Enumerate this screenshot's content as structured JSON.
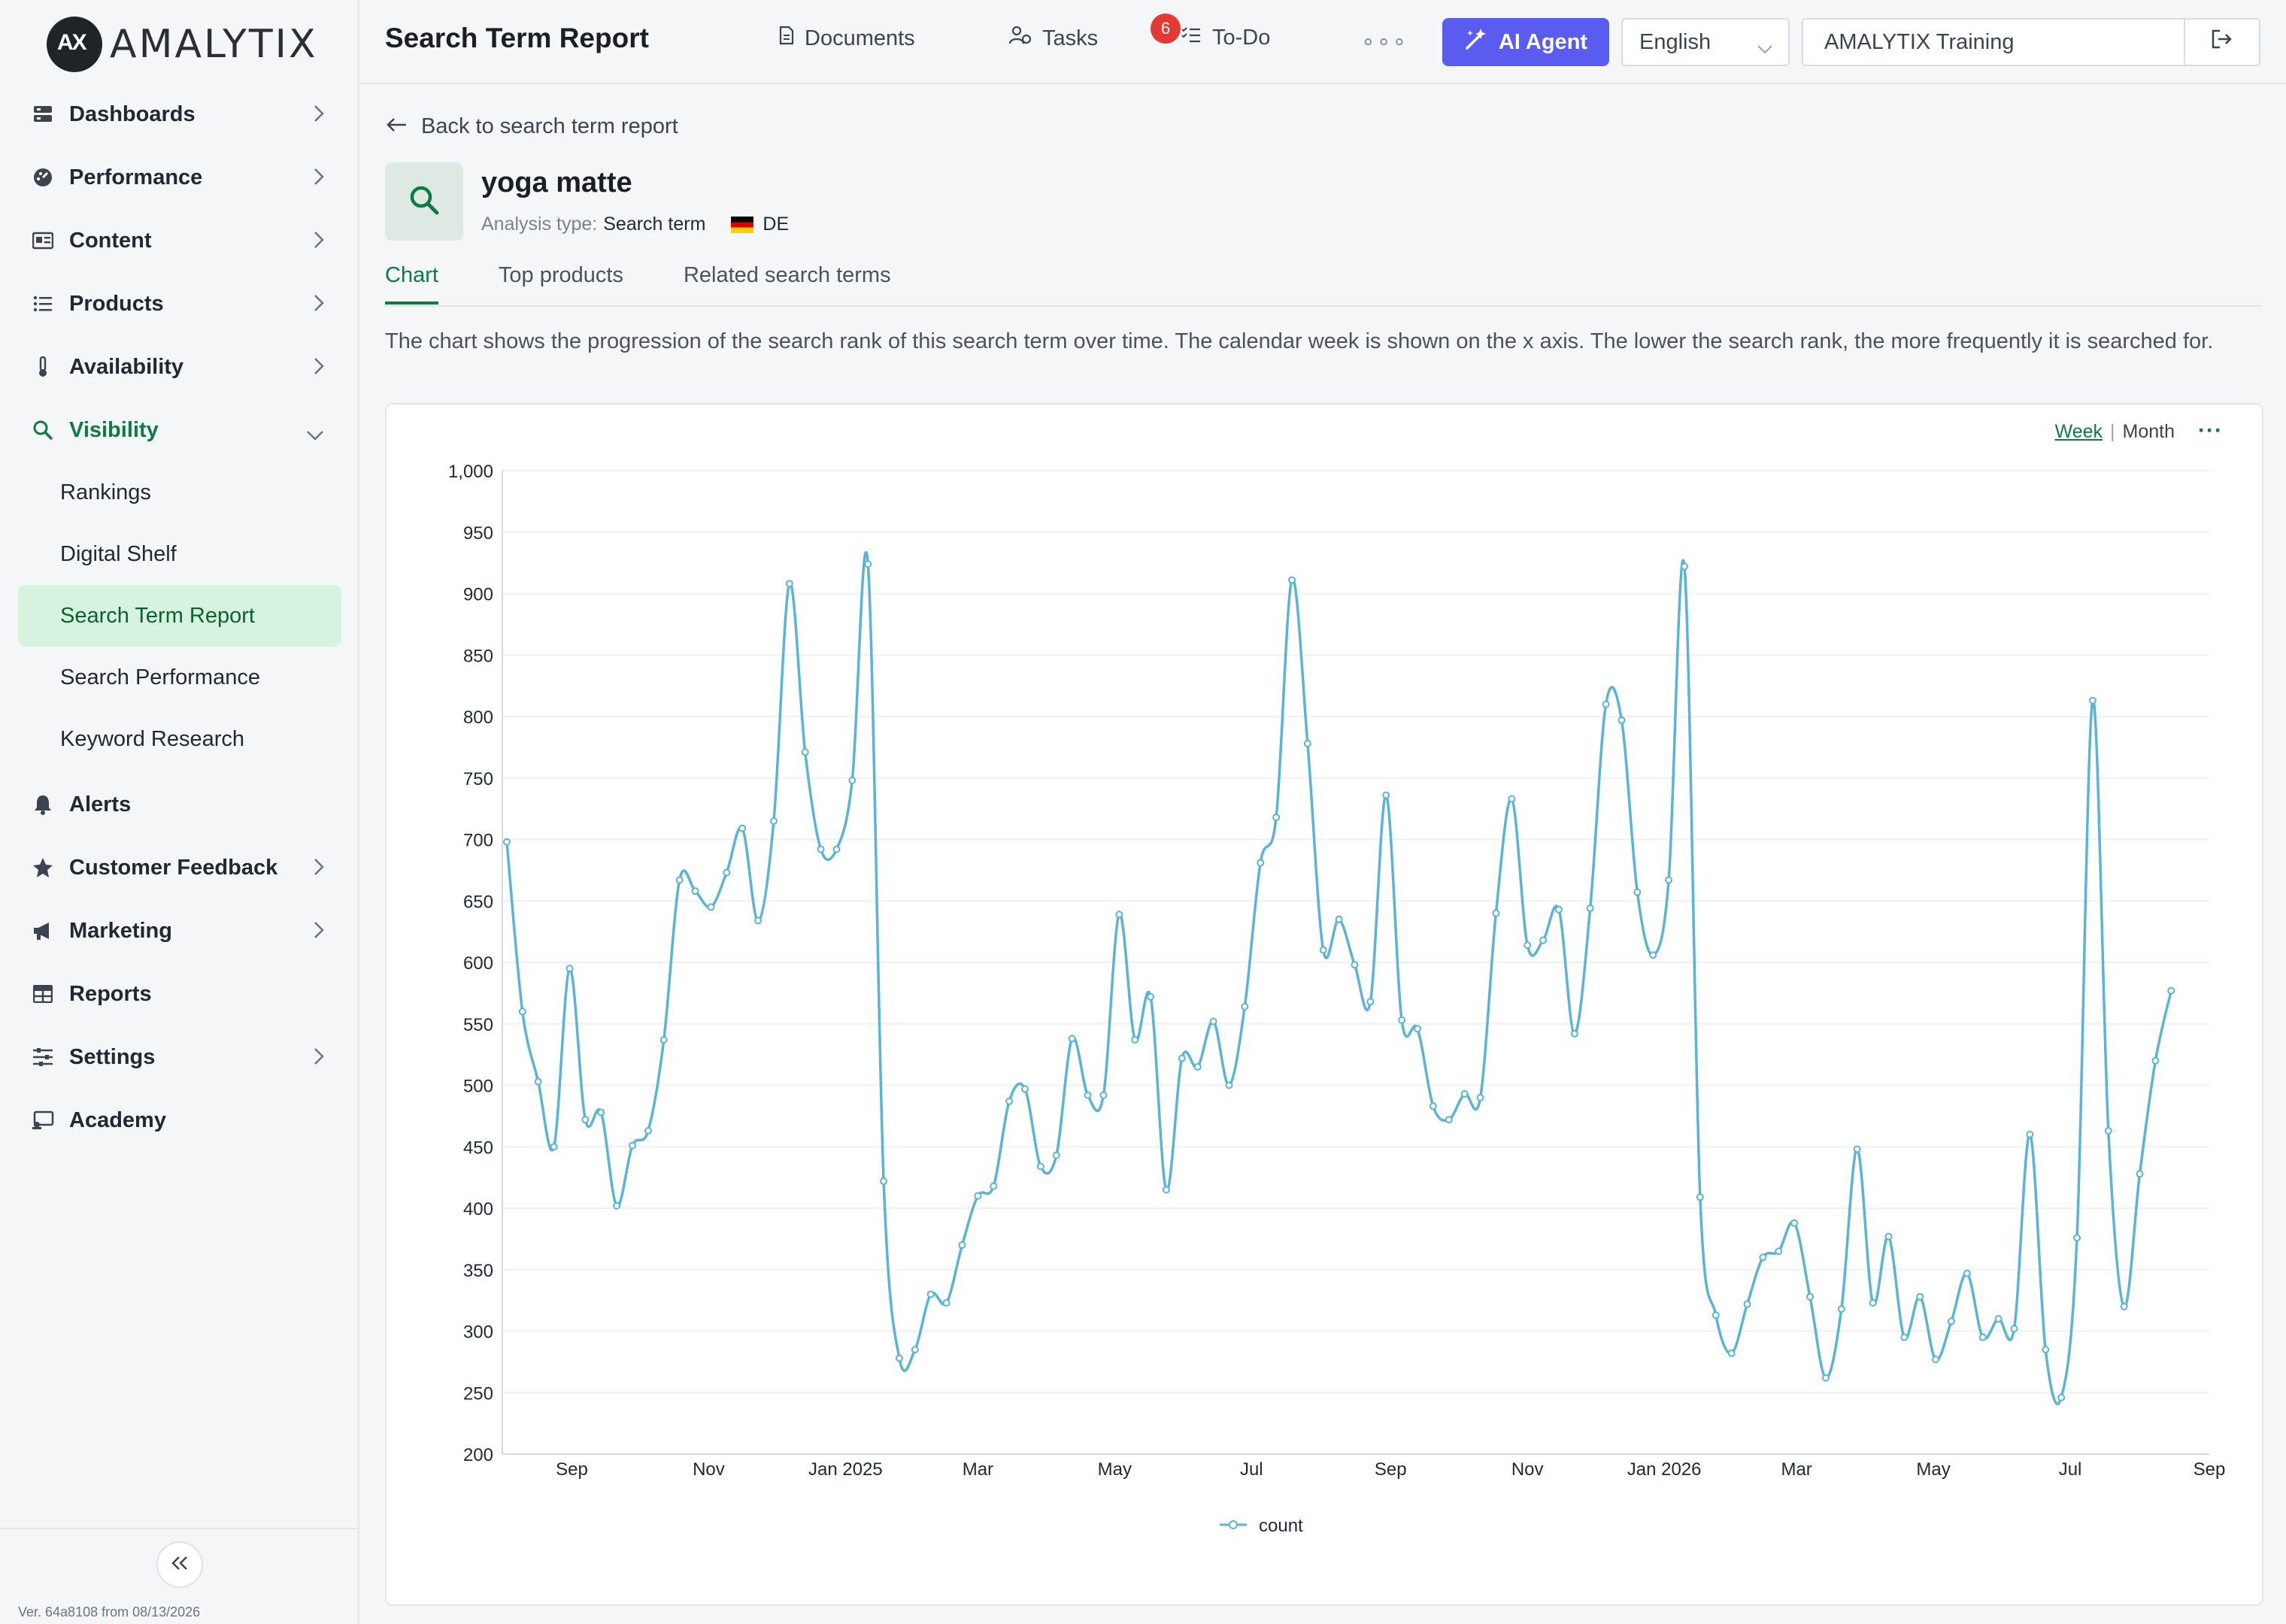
{
  "brand": {
    "name": "AMALYTIX",
    "mark": "AX"
  },
  "sidebar": {
    "items": [
      {
        "label": "Dashboards",
        "icon": "dashboards-icon"
      },
      {
        "label": "Performance",
        "icon": "performance-icon"
      },
      {
        "label": "Content",
        "icon": "content-icon"
      },
      {
        "label": "Products",
        "icon": "products-icon"
      },
      {
        "label": "Availability",
        "icon": "availability-icon"
      },
      {
        "label": "Visibility",
        "icon": "search-icon"
      },
      {
        "label": "Alerts",
        "icon": "bell-icon"
      },
      {
        "label": "Customer Feedback",
        "icon": "star-icon"
      },
      {
        "label": "Marketing",
        "icon": "megaphone-icon"
      },
      {
        "label": "Reports",
        "icon": "table-icon"
      },
      {
        "label": "Settings",
        "icon": "sliders-icon"
      },
      {
        "label": "Academy",
        "icon": "academy-icon"
      }
    ],
    "visibility_sub": [
      "Rankings",
      "Digital Shelf",
      "Search Term Report",
      "Search Performance",
      "Keyword Research"
    ],
    "selected_sub": "Search Term Report",
    "version": "Ver. 64a8108 from 08/13/2026"
  },
  "header": {
    "title": "Search Term Report",
    "documents_label": "Documents",
    "documents_badge": "6",
    "tasks_label": "Tasks",
    "todo_label": "To-Do",
    "more": "∘∘∘",
    "ai_label": "AI Agent",
    "language": "English",
    "account": "AMALYTIX Training"
  },
  "main": {
    "back_label": "Back to search term report",
    "term": "yoga matte",
    "analysis_type_label": "Analysis type:",
    "analysis_type_value": "Search term",
    "country": "DE",
    "tabs": [
      "Chart",
      "Top products",
      "Related search terms"
    ],
    "description": "The chart shows the progression of the search rank of this search term over time. The calendar week is shown on the x axis. The lower the search rank, the more frequently it is searched for.",
    "period_week": "Week",
    "period_month": "Month",
    "card_menu": "···"
  },
  "chart_data": {
    "type": "line",
    "ylim": [
      200,
      1000
    ],
    "yticks": [
      200,
      250,
      300,
      350,
      400,
      450,
      500,
      550,
      600,
      650,
      700,
      750,
      800,
      850,
      900,
      950,
      1000
    ],
    "ytick_labels": [
      "200",
      "250",
      "300",
      "350",
      "400",
      "450",
      "500",
      "550",
      "600",
      "650",
      "700",
      "750",
      "800",
      "850",
      "900",
      "950",
      "1,000"
    ],
    "x_start": "2024-08-01",
    "x_end": "2026-09-01",
    "xticks": [
      {
        "date": "2024-09-01",
        "label": "Sep"
      },
      {
        "date": "2024-11-01",
        "label": "Nov"
      },
      {
        "date": "2025-01-01",
        "label": "Jan 2025"
      },
      {
        "date": "2025-03-01",
        "label": "Mar"
      },
      {
        "date": "2025-05-01",
        "label": "May"
      },
      {
        "date": "2025-07-01",
        "label": "Jul"
      },
      {
        "date": "2025-09-01",
        "label": "Sep"
      },
      {
        "date": "2025-11-01",
        "label": "Nov"
      },
      {
        "date": "2026-01-01",
        "label": "Jan 2026"
      },
      {
        "date": "2026-03-01",
        "label": "Mar"
      },
      {
        "date": "2026-05-01",
        "label": "May"
      },
      {
        "date": "2026-07-01",
        "label": "Jul"
      },
      {
        "date": "2026-09-01",
        "label": "Sep"
      }
    ],
    "first_week": "2024-08-03",
    "series": [
      {
        "name": "count",
        "color": "#5ab4d6",
        "values": [
          698,
          560,
          503,
          450,
          595,
          472,
          478,
          402,
          451,
          463,
          537,
          667,
          658,
          645,
          673,
          709,
          634,
          715,
          908,
          771,
          692,
          692,
          748,
          924,
          422,
          278,
          285,
          330,
          323,
          370,
          410,
          418,
          487,
          497,
          434,
          443,
          538,
          492,
          492,
          639,
          537,
          572,
          415,
          522,
          515,
          552,
          500,
          564,
          681,
          718,
          911,
          778,
          610,
          635,
          598,
          568,
          736,
          553,
          546,
          483,
          472,
          493,
          490,
          640,
          733,
          614,
          618,
          643,
          542,
          644,
          810,
          797,
          657,
          606,
          667,
          922,
          409,
          313,
          282,
          322,
          360,
          365,
          388,
          328,
          262,
          318,
          448,
          323,
          377,
          295,
          328,
          277,
          308,
          347,
          295,
          310,
          302,
          460,
          285,
          246,
          376,
          813,
          463,
          320,
          428,
          520,
          577
        ]
      }
    ],
    "legend": {
      "position": "bottom",
      "label": "count"
    }
  }
}
